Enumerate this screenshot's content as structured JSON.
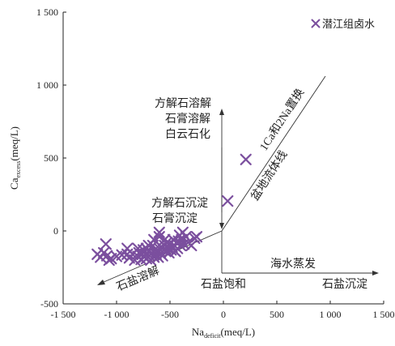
{
  "chart_data": {
    "type": "scatter",
    "x_label_main": "Na",
    "x_label_sub": "deficit",
    "x_label_unit": "(meq/L)",
    "y_label_main": "Ca",
    "y_label_sub": "excess",
    "y_label_unit": "(meq/L)",
    "xlim": [
      -1500,
      1500
    ],
    "ylim": [
      -500,
      1500
    ],
    "x_ticks": [
      -1500,
      -1000,
      -500,
      0,
      500,
      1000,
      1500
    ],
    "x_tick_labels": [
      "-1 500",
      "-1 000",
      "-500",
      "0",
      "500",
      "1 000",
      "1 500"
    ],
    "y_ticks": [
      -500,
      0,
      500,
      1000,
      1500
    ],
    "y_tick_labels": [
      "-500",
      "0",
      "500",
      "1 000",
      "1 500"
    ],
    "legend_position": "top-right",
    "series": [
      {
        "name": "潜江组卤水",
        "color": "#7b4f9e",
        "marker": "x",
        "points": [
          [
            -1180,
            -160
          ],
          [
            -1150,
            -180
          ],
          [
            -1120,
            -150
          ],
          [
            -1100,
            -90
          ],
          [
            -1090,
            -170
          ],
          [
            -1070,
            -200
          ],
          [
            -1050,
            -190
          ],
          [
            -1000,
            -175
          ],
          [
            -950,
            -165
          ],
          [
            -900,
            -160
          ],
          [
            -880,
            -185
          ],
          [
            -850,
            -160
          ],
          [
            -830,
            -200
          ],
          [
            -800,
            -175
          ],
          [
            -790,
            -150
          ],
          [
            -770,
            -195
          ],
          [
            -760,
            -160
          ],
          [
            -750,
            -130
          ],
          [
            -740,
            -180
          ],
          [
            -730,
            -160
          ],
          [
            -720,
            -190
          ],
          [
            -700,
            -140
          ],
          [
            -690,
            -170
          ],
          [
            -680,
            -200
          ],
          [
            -670,
            -150
          ],
          [
            -660,
            -100
          ],
          [
            -650,
            -180
          ],
          [
            -640,
            -130
          ],
          [
            -630,
            -160
          ],
          [
            -620,
            -140
          ],
          [
            -610,
            -180
          ],
          [
            -600,
            -120
          ],
          [
            -590,
            -150
          ],
          [
            -580,
            -110
          ],
          [
            -570,
            -170
          ],
          [
            -560,
            -130
          ],
          [
            -550,
            -100
          ],
          [
            -540,
            -140
          ],
          [
            -530,
            -80
          ],
          [
            -520,
            -120
          ],
          [
            -510,
            -150
          ],
          [
            -500,
            -90
          ],
          [
            -490,
            -130
          ],
          [
            -480,
            -110
          ],
          [
            -470,
            -60
          ],
          [
            -460,
            -100
          ],
          [
            -450,
            -140
          ],
          [
            -440,
            -80
          ],
          [
            -430,
            -120
          ],
          [
            -420,
            -70
          ],
          [
            -410,
            -30
          ],
          [
            -400,
            -100
          ],
          [
            -390,
            -60
          ],
          [
            -380,
            -10
          ],
          [
            -370,
            -90
          ],
          [
            -350,
            -40
          ],
          [
            -330,
            -80
          ],
          [
            -300,
            -100
          ],
          [
            -270,
            -50
          ],
          [
            -250,
            -40
          ],
          [
            -800,
            -120
          ],
          [
            -720,
            -120
          ],
          [
            -650,
            -60
          ],
          [
            -600,
            -40
          ],
          [
            -550,
            -60
          ],
          [
            -700,
            -100
          ],
          [
            -900,
            -120
          ],
          [
            -600,
            -10
          ],
          [
            40,
            205
          ],
          [
            210,
            490
          ]
        ]
      }
    ],
    "annotations": [
      {
        "text": "方解石溶解",
        "key": "a1"
      },
      {
        "text": "石膏溶解",
        "key": "a2"
      },
      {
        "text": "白云石化",
        "key": "a3"
      },
      {
        "text": "方解石沉淀",
        "key": "a4"
      },
      {
        "text": "石膏沉淀",
        "key": "a5"
      },
      {
        "text": "1Ca和2Na置换",
        "key": "a6"
      },
      {
        "text": "盆地流体线",
        "key": "a7"
      },
      {
        "text": "海水蒸发",
        "key": "a8"
      },
      {
        "text": "石盐饱和",
        "key": "a9"
      },
      {
        "text": "石盐沉淀",
        "key": "a10"
      },
      {
        "text": "石盐溶解",
        "key": "a11"
      }
    ]
  }
}
